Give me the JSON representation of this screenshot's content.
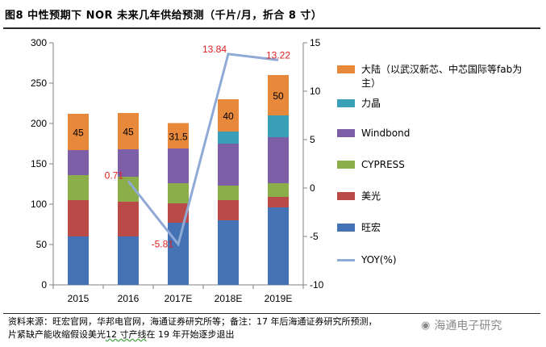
{
  "title": "图8  中性预期下 NOR 未来几年供给预测（千片/月，折合 8 寸）",
  "chart_data": {
    "type": "bar",
    "stacked": true,
    "categories": [
      "2015",
      "2016",
      "2017E",
      "2018E",
      "2019E"
    ],
    "series": [
      {
        "name": "旺宏",
        "color": "#4472b4",
        "values": [
          60,
          60,
          77,
          80,
          96
        ]
      },
      {
        "name": "美光",
        "color": "#b94a48",
        "values": [
          45,
          43,
          24,
          25,
          13
        ]
      },
      {
        "name": "CYPRESS",
        "color": "#8cae4a",
        "values": [
          31,
          31,
          25,
          18,
          17
        ]
      },
      {
        "name": "Windbond",
        "color": "#7d5fa8",
        "values": [
          31,
          34,
          43,
          52,
          57
        ]
      },
      {
        "name": "力晶",
        "color": "#3aa0b8",
        "values": [
          0,
          0,
          0,
          15,
          27
        ]
      },
      {
        "name": "大陆（以武汉新芯、中芯国际等fab为主）",
        "color": "#e8883a",
        "values": [
          45,
          45,
          31.5,
          40,
          50
        ]
      }
    ],
    "line_series": {
      "name": "YOY(%)",
      "color": "#8faad6",
      "values": [
        0.71,
        -5.81,
        13.84,
        13.22
      ],
      "x_categories": [
        "2016",
        "2017E",
        "2018E",
        "2019E"
      ]
    },
    "stack_labels": {
      "series": "大陆（以武汉新芯、中芯国际等fab为主）",
      "labels": [
        "45",
        "45",
        "31.5",
        "40",
        "50"
      ],
      "color": "#000000"
    },
    "line_labels": {
      "labels": [
        "0.71",
        "-5.81",
        "13.84",
        "13.22"
      ],
      "color": "#e02020"
    },
    "y_left": {
      "min": 0,
      "max": 300,
      "ticks": [
        "0",
        "50",
        "100",
        "150",
        "200",
        "250",
        "300"
      ]
    },
    "y_right": {
      "min": -10,
      "max": 15,
      "ticks": [
        "-10",
        "-5",
        "0",
        "5",
        "10",
        "15"
      ]
    },
    "legend_position": "right"
  },
  "legend": [
    {
      "label": "大陆（以武汉新芯、中芯国际等fab为主）",
      "color": "#e8883a",
      "kind": "box"
    },
    {
      "label": "力晶",
      "color": "#3aa0b8",
      "kind": "box"
    },
    {
      "label": "Windbond",
      "color": "#7d5fa8",
      "kind": "box"
    },
    {
      "label": "CYPRESS",
      "color": "#8cae4a",
      "kind": "box"
    },
    {
      "label": "美光",
      "color": "#b94a48",
      "kind": "box"
    },
    {
      "label": "旺宏",
      "color": "#4472b4",
      "kind": "box"
    },
    {
      "label": "YOY(%)",
      "color": "#8faad6",
      "kind": "line"
    }
  ],
  "footnote": {
    "part1": "资料来源：旺宏官网，华邦电官网，海通证券研究所等；备注：17 年后海通证券研究所预测，",
    "part2": "片紧缺产能收缩假设美光",
    "highlight": "12 寸产线",
    "part3": "在 19 年开始逐步退出"
  },
  "watermark": {
    "text": "海通电子研究",
    "icon": "wechat-icon"
  }
}
